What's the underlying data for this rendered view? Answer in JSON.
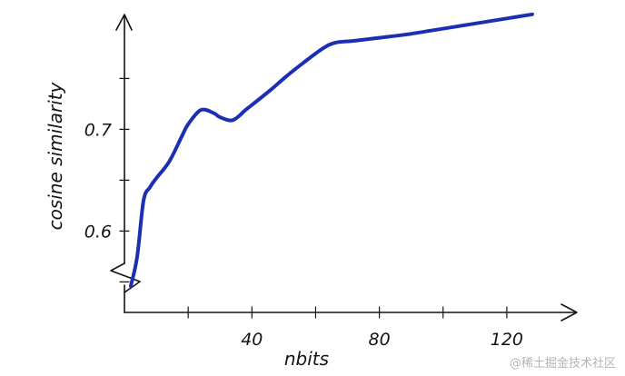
{
  "chart_data": {
    "type": "line",
    "xlabel": "nbits",
    "ylabel": "cosine similarity",
    "x_ticks": [
      40,
      80,
      120
    ],
    "y_ticks": [
      0.6,
      0.7
    ],
    "xlim": [
      0,
      136
    ],
    "ylim": [
      0.52,
      0.82
    ],
    "grid": false,
    "legend": "none",
    "series": [
      {
        "color": "#1a2fb2",
        "x": [
          2,
          4,
          6,
          8,
          10,
          14,
          18,
          20,
          24,
          28,
          30,
          34,
          38,
          40,
          46,
          50,
          56,
          62,
          66,
          72,
          80,
          88,
          96,
          104,
          112,
          120,
          128
        ],
        "y": [
          0.546,
          0.575,
          0.63,
          0.643,
          0.652,
          0.668,
          0.693,
          0.705,
          0.719,
          0.716,
          0.712,
          0.709,
          0.719,
          0.724,
          0.739,
          0.75,
          0.765,
          0.779,
          0.785,
          0.787,
          0.79,
          0.793,
          0.797,
          0.801,
          0.805,
          0.809,
          0.813
        ]
      }
    ]
  },
  "watermark": "@稀土掘金技术社区"
}
